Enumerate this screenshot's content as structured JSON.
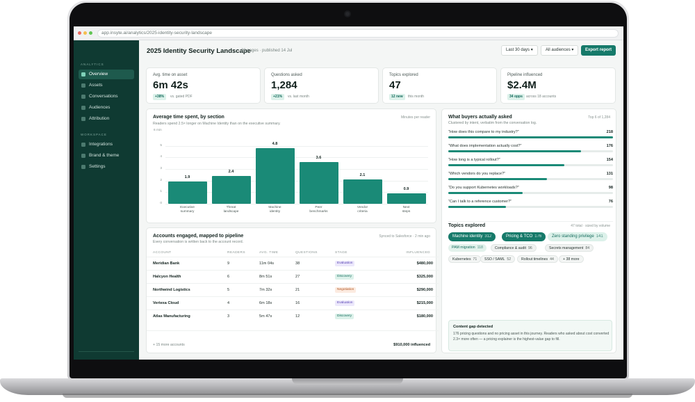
{
  "browser": {
    "url": "app.insyte.ai/analytics/2025-identity-security-landscape"
  },
  "sidebar": {
    "section_analytics": "ANALYTICS",
    "section_workspace": "WORKSPACE",
    "items": [
      {
        "label": "Overview",
        "icon": "grid-icon"
      },
      {
        "label": "Assets",
        "icon": "file-icon"
      },
      {
        "label": "Conversations",
        "icon": "chat-icon"
      },
      {
        "label": "Audiences",
        "icon": "users-icon"
      },
      {
        "label": "Attribution",
        "icon": "target-icon"
      },
      {
        "label": "Integrations",
        "icon": "plug-icon"
      },
      {
        "label": "Brand & theme",
        "icon": "palette-icon"
      },
      {
        "label": "Settings",
        "icon": "gear-icon"
      }
    ]
  },
  "header": {
    "title": "2025 Identity Security Landscape",
    "meta": "28 pages · published 14 Jul",
    "range": "Last 30 days",
    "audience": "All audiences",
    "export": "Export report",
    "caret": "▾"
  },
  "kpis": [
    {
      "label": "Avg. time on asset",
      "value": "6m 42s",
      "badge": "+38%",
      "note": "vs. gated PDF"
    },
    {
      "label": "Questions asked",
      "value": "1,284",
      "badge": "+21%",
      "note": "vs. last month"
    },
    {
      "label": "Topics explored",
      "value": "47",
      "badge": "12 new",
      "note": "this month"
    },
    {
      "label": "Pipeline influenced",
      "value": "$2.4M",
      "badge": "34 opps",
      "note": "across 18 accounts"
    }
  ],
  "time_chart": {
    "title": "Average time spent, by section",
    "subtitle": "Readers spend 2.5× longer on Machine Identity than on the executive summary.",
    "right": "Minutes per reader",
    "unit": "6 min",
    "ticks": [
      "5",
      "4",
      "3",
      "2",
      "1",
      "0"
    ]
  },
  "chart_data": {
    "type": "bar",
    "title": "Average time spent, by section",
    "ylabel": "6 min",
    "categories": [
      "Executive summary",
      "Threat landscape",
      "Machine identity",
      "Peer benchmarks",
      "Vendor criteria",
      "Next steps"
    ],
    "category_lines": [
      [
        "Executive",
        "summary"
      ],
      [
        "Threat",
        "landscape"
      ],
      [
        "Machine",
        "identity"
      ],
      [
        "Peer",
        "benchmarks"
      ],
      [
        "Vendor",
        "criteria"
      ],
      [
        "Next",
        "steps"
      ]
    ],
    "values": [
      1.9,
      2.4,
      4.8,
      3.6,
      2.1,
      0.9
    ],
    "value_labels": [
      "1.9",
      "2.4",
      "4.8",
      "3.6",
      "2.1",
      "0.9"
    ],
    "ylim": [
      0,
      6
    ],
    "grid": true,
    "bar_color": "#1a8a77"
  },
  "accounts": {
    "title": "Accounts engaged, mapped to pipeline",
    "subtitle": "Every conversation is written back to the account record.",
    "sync": "Synced to Salesforce · 2 min ago",
    "columns": [
      "ACCOUNT",
      "READERS",
      "AVG. TIME",
      "QUESTIONS",
      "STAGE",
      "INFLUENCED"
    ],
    "rows": [
      {
        "account": "Meridian Bank",
        "readers": "9",
        "time": "11m 04s",
        "questions": "38",
        "stage": "Evaluation",
        "influenced": "$480,000"
      },
      {
        "account": "Halcyon Health",
        "readers": "6",
        "time": "8m 51s",
        "questions": "27",
        "stage": "Discovery",
        "influenced": "$325,000"
      },
      {
        "account": "Northwind Logistics",
        "readers": "5",
        "time": "7m 32s",
        "questions": "21",
        "stage": "Negotiation",
        "influenced": "$290,000"
      },
      {
        "account": "Vertexa Cloud",
        "readers": "4",
        "time": "6m 18s",
        "questions": "16",
        "stage": "Evaluation",
        "influenced": "$215,000"
      },
      {
        "account": "Atlas Manufacturing",
        "readers": "3",
        "time": "5m 47s",
        "questions": "12",
        "stage": "Discovery",
        "influenced": "$180,000"
      }
    ],
    "more": "+ 15 more accounts",
    "total": "$910,000 influenced",
    "stage_colors": {
      "Evaluation": [
        "#ece8fb",
        "#5a45b5"
      ],
      "Discovery": [
        "#dcf1ea",
        "#126a5b"
      ],
      "Negotiation": [
        "#fcebe0",
        "#b0531f"
      ]
    }
  },
  "questions": {
    "title": "What buyers actually asked",
    "subtitle": "Clustered by intent, verbatim from the conversation log.",
    "right": "Top 6 of 1,284",
    "max": 218,
    "items": [
      {
        "text": "“How does this compare to my industry?”",
        "count": 218
      },
      {
        "text": "“What does implementation actually cost?”",
        "count": 176
      },
      {
        "text": "“How long is a typical rollout?”",
        "count": 154
      },
      {
        "text": "“Which vendors do you replace?”",
        "count": 131
      },
      {
        "text": "“Do you support Kubernetes workloads?”",
        "count": 98
      },
      {
        "text": "“Can I talk to a reference customer?”",
        "count": 76
      }
    ]
  },
  "topics": {
    "title": "Topics explored",
    "right": "47 total · sized by volume",
    "chips": [
      {
        "label": "Machine identity",
        "n": "312"
      },
      {
        "label": "Pricing & TCO",
        "n": "176"
      },
      {
        "label": "Zero standing privilege",
        "n": "141"
      },
      {
        "label": "PAM migration",
        "n": "118"
      },
      {
        "label": "Compliance & audit",
        "n": "96"
      },
      {
        "label": "Secrets management",
        "n": "84"
      },
      {
        "label": "Kubernetes",
        "n": "71"
      },
      {
        "label": "SSO / SAML",
        "n": "52"
      },
      {
        "label": "Rollout timelines",
        "n": "44"
      },
      {
        "label": "+ 38 more",
        "n": ""
      }
    ]
  },
  "gap": {
    "title": "Content gap detected",
    "body": "176 pricing questions and no pricing asset in this journey. Readers who asked about cost converted 2.3× more often — a pricing explainer is the highest-value gap to fill."
  }
}
